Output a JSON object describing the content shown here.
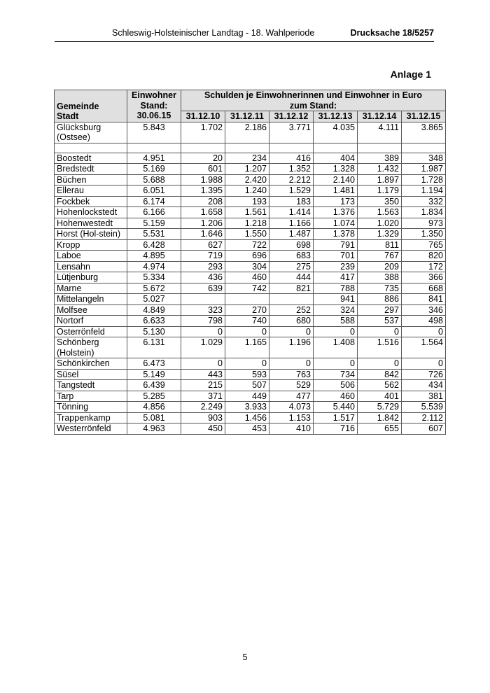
{
  "header": {
    "left": "Schleswig-Holsteinischer Landtag - 18. Wahlperiode",
    "right": "Drucksache 18/5257"
  },
  "annex_label": "Anlage 1",
  "table": {
    "col_municipality": [
      "Gemeinde",
      "Stadt"
    ],
    "col_population": [
      "Einwohner",
      "Stand:",
      "30.06.15"
    ],
    "debt_group_header": [
      "Schulden je Einwohnerinnen und Einwohner in Euro",
      "zum Stand:"
    ],
    "dates": [
      "31.12.10",
      "31.12.11",
      "31.12.12",
      "31.12.13",
      "31.12.14",
      "31.12.15"
    ],
    "rows": [
      {
        "name": "Glücksburg (Ostsee)",
        "pop": "5.843",
        "values": [
          "1.702",
          "2.186",
          "3.771",
          "4.035",
          "4.111",
          "3.865"
        ]
      },
      {
        "name": "",
        "pop": "",
        "values": [
          "",
          "",
          "",
          "",
          "",
          ""
        ],
        "blank": true
      },
      {
        "name": "Boostedt",
        "pop": "4.951",
        "values": [
          "20",
          "234",
          "416",
          "404",
          "389",
          "348"
        ]
      },
      {
        "name": "Bredstedt",
        "pop": "5.169",
        "values": [
          "601",
          "1.207",
          "1.352",
          "1.328",
          "1.432",
          "1.987"
        ]
      },
      {
        "name": "Büchen",
        "pop": "5.688",
        "values": [
          "1.988",
          "2.420",
          "2.212",
          "2.140",
          "1.897",
          "1.728"
        ]
      },
      {
        "name": "Ellerau",
        "pop": "6.051",
        "values": [
          "1.395",
          "1.240",
          "1.529",
          "1.481",
          "1.179",
          "1.194"
        ]
      },
      {
        "name": "Fockbek",
        "pop": "6.174",
        "values": [
          "208",
          "193",
          "183",
          "173",
          "350",
          "332"
        ]
      },
      {
        "name": "Hohenlockstedt",
        "pop": "6.166",
        "values": [
          "1.658",
          "1.561",
          "1.414",
          "1.376",
          "1.563",
          "1.834"
        ]
      },
      {
        "name": "Hohenwestedt",
        "pop": "5.159",
        "values": [
          "1.206",
          "1.218",
          "1.166",
          "1.074",
          "1.020",
          "973"
        ]
      },
      {
        "name": "Horst (Hol-stein)",
        "pop": "5.531",
        "values": [
          "1.646",
          "1.550",
          "1.487",
          "1.378",
          "1.329",
          "1.350"
        ]
      },
      {
        "name": "Kropp",
        "pop": "6.428",
        "values": [
          "627",
          "722",
          "698",
          "791",
          "811",
          "765"
        ]
      },
      {
        "name": "Laboe",
        "pop": "4.895",
        "values": [
          "719",
          "696",
          "683",
          "701",
          "767",
          "820"
        ]
      },
      {
        "name": "Lensahn",
        "pop": "4.974",
        "values": [
          "293",
          "304",
          "275",
          "239",
          "209",
          "172"
        ]
      },
      {
        "name": "Lütjenburg",
        "pop": "5.334",
        "values": [
          "436",
          "460",
          "444",
          "417",
          "388",
          "366"
        ]
      },
      {
        "name": "Marne",
        "pop": "5.672",
        "values": [
          "639",
          "742",
          "821",
          "788",
          "735",
          "668"
        ]
      },
      {
        "name": "Mittelangeln",
        "pop": "5.027",
        "values": [
          "",
          "",
          "",
          "941",
          "886",
          "841"
        ]
      },
      {
        "name": "Molfsee",
        "pop": "4.849",
        "values": [
          "323",
          "270",
          "252",
          "324",
          "297",
          "346"
        ]
      },
      {
        "name": "Nortorf",
        "pop": "6.633",
        "values": [
          "798",
          "740",
          "680",
          "588",
          "537",
          "498"
        ]
      },
      {
        "name": "Osterrönfeld",
        "pop": "5.130",
        "values": [
          "0",
          "0",
          "0",
          "0",
          "0",
          "0"
        ]
      },
      {
        "name": "Schönberg (Holstein)",
        "pop": "6.131",
        "values": [
          "1.029",
          "1.165",
          "1.196",
          "1.408",
          "1.516",
          "1.564"
        ]
      },
      {
        "name": "Schönkirchen",
        "pop": "6.473",
        "values": [
          "0",
          "0",
          "0",
          "0",
          "0",
          "0"
        ]
      },
      {
        "name": "Süsel",
        "pop": "5.149",
        "values": [
          "443",
          "593",
          "763",
          "734",
          "842",
          "726"
        ]
      },
      {
        "name": "Tangstedt",
        "pop": "6.439",
        "values": [
          "215",
          "507",
          "529",
          "506",
          "562",
          "434"
        ]
      },
      {
        "name": "Tarp",
        "pop": "5.285",
        "values": [
          "371",
          "449",
          "477",
          "460",
          "401",
          "381"
        ]
      },
      {
        "name": "Tönning",
        "pop": "4.856",
        "values": [
          "2.249",
          "3.933",
          "4.073",
          "5.440",
          "5.729",
          "5.539"
        ]
      },
      {
        "name": "Trappenkamp",
        "pop": "5.081",
        "values": [
          "903",
          "1.456",
          "1.153",
          "1.517",
          "1.842",
          "2.112"
        ]
      },
      {
        "name": "Westerrönfeld",
        "pop": "4.963",
        "values": [
          "450",
          "453",
          "410",
          "716",
          "655",
          "607"
        ]
      }
    ]
  },
  "page_number": "5"
}
